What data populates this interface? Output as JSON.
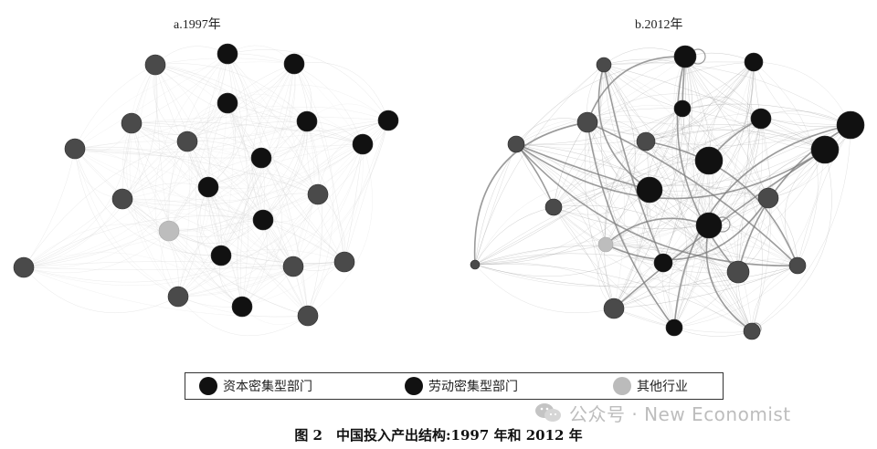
{
  "panels": [
    {
      "title": "a.1997年"
    },
    {
      "title": "b.2012年"
    }
  ],
  "legend": [
    {
      "label": "资本密集型部门",
      "color": "#111111"
    },
    {
      "label": "劳动密集型部门",
      "color": "#111111"
    },
    {
      "label": "其他行业",
      "color": "#bbbbbb"
    }
  ],
  "watermark": {
    "text": "公众号 · New Economist",
    "icon": "wechat-icon"
  },
  "caption": "图 2　中国投入产出结构:1997 年和 2012 年",
  "colors": {
    "capital": "#111111",
    "labor": "#4a4a4a",
    "other": "#bdbdbd",
    "edge_a": "#d4d4d4",
    "edge_b": "#9a9a9a"
  }
}
